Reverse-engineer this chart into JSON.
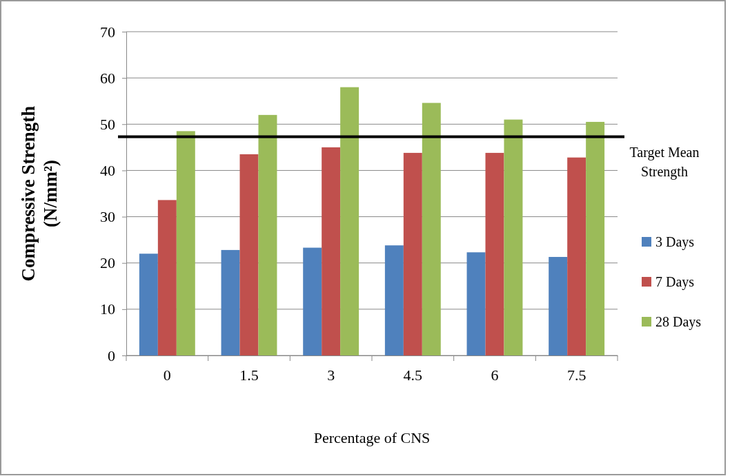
{
  "chart_data": {
    "type": "bar",
    "xlabel": "Percentage of CNS",
    "ylabel": "Compressive Strength (N/mm²)",
    "categories": [
      "0",
      "1.5",
      "3",
      "4.5",
      "6",
      "7.5"
    ],
    "series": [
      {
        "name": "3 Days",
        "color": "#4f81bd",
        "values": [
          22.0,
          22.8,
          23.3,
          23.8,
          22.3,
          21.3
        ]
      },
      {
        "name": "7 Days",
        "color": "#c0504d",
        "values": [
          33.6,
          43.5,
          45.0,
          43.8,
          43.8,
          42.8
        ]
      },
      {
        "name": "28 Days",
        "color": "#9bbb59",
        "values": [
          48.5,
          52.0,
          58.0,
          54.6,
          51.0,
          50.5
        ]
      }
    ],
    "ylim": [
      0,
      70
    ],
    "yticks": [
      0,
      10,
      20,
      30,
      40,
      50,
      60,
      70
    ],
    "grid": "y",
    "legend": "right",
    "ref_lines": [
      {
        "axis": "y",
        "value": 47.3,
        "label": "Target Mean Strength",
        "color": "#000000"
      }
    ]
  }
}
